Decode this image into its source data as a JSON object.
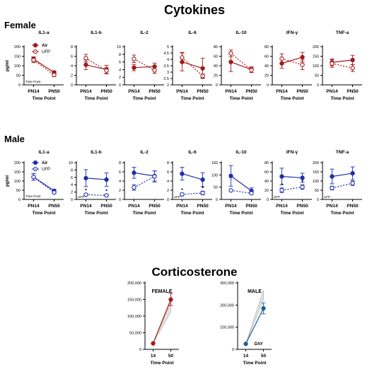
{
  "titles": {
    "cytokines": "Cytokines",
    "corticosterone": "Corticosterone"
  },
  "sections": {
    "female": "Female",
    "male": "Male"
  },
  "colors": {
    "female": "#a31a1a",
    "male": "#1f2fa8",
    "band": "#c8c8c8"
  },
  "legend": {
    "air": "Air",
    "ufp": "UFP"
  },
  "chart_data": [
    {
      "type": "line",
      "group": "Female",
      "title": "IL1-a",
      "xlabel": "Time Point",
      "ylabel": "pg/ml",
      "categories": [
        "PN14",
        "PN50"
      ],
      "ylim": [
        0,
        200
      ],
      "yticks": [
        0,
        50,
        100,
        150,
        200
      ],
      "series": [
        {
          "name": "Air",
          "values": [
            135,
            65
          ],
          "err": [
            12,
            8
          ]
        },
        {
          "name": "UFP",
          "values": [
            130,
            52
          ],
          "err": [
            14,
            9
          ]
        }
      ],
      "annotations": [
        "Time Point"
      ]
    },
    {
      "type": "line",
      "group": "Female",
      "title": "IL1-b",
      "xlabel": "Time Point",
      "categories": [
        "PN14",
        "PN50"
      ],
      "ylim": [
        0,
        8
      ],
      "yticks": [
        0,
        2,
        4,
        6,
        8
      ],
      "series": [
        {
          "name": "Air",
          "values": [
            4.2,
            3.2
          ],
          "err": [
            1.0,
            0.9
          ]
        },
        {
          "name": "UFP",
          "values": [
            5.6,
            3.0
          ],
          "err": [
            0.8,
            0.6
          ]
        }
      ]
    },
    {
      "type": "line",
      "group": "Female",
      "title": "IL-2",
      "xlabel": "Time Point",
      "categories": [
        "PN14",
        "PN50"
      ],
      "ylim": [
        0,
        10
      ],
      "yticks": [
        0,
        2,
        4,
        6,
        8,
        10
      ],
      "series": [
        {
          "name": "Air",
          "values": [
            4.5,
            4.8
          ],
          "err": [
            0.8,
            0.9
          ]
        },
        {
          "name": "UFP",
          "values": [
            6.8,
            3.8
          ],
          "err": [
            1.0,
            0.8
          ]
        }
      ]
    },
    {
      "type": "line",
      "group": "Female",
      "title": "IL-6",
      "xlabel": "Time Point",
      "categories": [
        "PN14",
        "PN50"
      ],
      "ylim": [
        2.0,
        5.0
      ],
      "yticks": [
        2.0,
        2.5,
        3.0,
        3.5,
        4.0,
        4.5,
        5.0
      ],
      "series": [
        {
          "name": "Air",
          "values": [
            3.8,
            3.3
          ],
          "err": [
            0.7,
            0.8
          ]
        },
        {
          "name": "UFP",
          "values": [
            4.15,
            2.7
          ],
          "err": [
            0.4,
            0.15
          ]
        }
      ]
    },
    {
      "type": "line",
      "group": "Female",
      "title": "IL-10",
      "xlabel": "Time Point",
      "categories": [
        "PN14",
        "PN50"
      ],
      "ylim": [
        0,
        80
      ],
      "yticks": [
        0,
        20,
        40,
        60,
        80
      ],
      "series": [
        {
          "name": "Air",
          "values": [
            48,
            32
          ],
          "err": [
            20,
            6
          ]
        },
        {
          "name": "UFP",
          "values": [
            66,
            31
          ],
          "err": [
            7,
            5
          ]
        }
      ]
    },
    {
      "type": "line",
      "group": "Female",
      "title": "IFN-γ",
      "xlabel": "Time Point",
      "categories": [
        "PN14",
        "PN50"
      ],
      "ylim": [
        0,
        80
      ],
      "yticks": [
        0,
        20,
        40,
        60,
        80
      ],
      "series": [
        {
          "name": "Air",
          "values": [
            45,
            58
          ],
          "err": [
            10,
            10
          ]
        },
        {
          "name": "UFP",
          "values": [
            55,
            42
          ],
          "err": [
            10,
            10
          ]
        }
      ]
    },
    {
      "type": "line",
      "group": "Female",
      "title": "TNF-a",
      "xlabel": "Time Point",
      "categories": [
        "PN14",
        "PN50"
      ],
      "ylim": [
        0,
        200
      ],
      "yticks": [
        0,
        50,
        100,
        150,
        200
      ],
      "series": [
        {
          "name": "Air",
          "values": [
            118,
            130
          ],
          "err": [
            18,
            25
          ]
        },
        {
          "name": "UFP",
          "values": [
            112,
            88
          ],
          "err": [
            20,
            18
          ]
        }
      ]
    },
    {
      "type": "line",
      "group": "Male",
      "title": "IL1-a",
      "xlabel": "Time Point",
      "ylabel": "pg/ml",
      "categories": [
        "PN14",
        "PN50"
      ],
      "ylim": [
        0,
        200
      ],
      "yticks": [
        0,
        50,
        100,
        150,
        200
      ],
      "series": [
        {
          "name": "Air",
          "values": [
            122,
            47
          ],
          "err": [
            18,
            6
          ]
        },
        {
          "name": "UFP",
          "values": [
            122,
            38
          ],
          "err": [
            18,
            6
          ]
        }
      ],
      "annotations": [
        "Time Point"
      ]
    },
    {
      "type": "line",
      "group": "Male",
      "title": "IL1-b",
      "xlabel": "Time Point",
      "categories": [
        "PN14",
        "PN50"
      ],
      "ylim": [
        0,
        10
      ],
      "yticks": [
        0,
        2,
        4,
        6,
        8,
        10
      ],
      "series": [
        {
          "name": "Air",
          "values": [
            5.8,
            5.4
          ],
          "err": [
            2.3,
            1.8
          ]
        },
        {
          "name": "UFP",
          "values": [
            1.3,
            1.1
          ],
          "err": [
            0.3,
            0.3
          ]
        }
      ],
      "annotations": [
        "UFP",
        "*",
        "*"
      ]
    },
    {
      "type": "line",
      "group": "Male",
      "title": "IL-2",
      "xlabel": "Time Point",
      "categories": [
        "PN14",
        "PN50"
      ],
      "ylim": [
        0,
        8
      ],
      "yticks": [
        0,
        2,
        4,
        6,
        8
      ],
      "series": [
        {
          "name": "Air",
          "values": [
            5.8,
            5.1
          ],
          "err": [
            1.2,
            1.1
          ]
        },
        {
          "name": "UFP",
          "values": [
            2.6,
            5.0
          ],
          "err": [
            0.6,
            1.2
          ]
        }
      ]
    },
    {
      "type": "line",
      "group": "Male",
      "title": "IL-6",
      "xlabel": "Time Point",
      "categories": [
        "PN14",
        "PN50"
      ],
      "ylim": [
        0,
        8
      ],
      "yticks": [
        0,
        2,
        4,
        6,
        8
      ],
      "series": [
        {
          "name": "Air",
          "values": [
            5.6,
            4.3
          ],
          "err": [
            1.4,
            1.5
          ]
        },
        {
          "name": "UFP",
          "values": [
            1.1,
            1.4
          ],
          "err": [
            0.3,
            0.4
          ]
        }
      ],
      "annotations": [
        "UFP",
        "*",
        "*"
      ]
    },
    {
      "type": "line",
      "group": "Male",
      "title": "IL-10",
      "xlabel": "Time Point",
      "categories": [
        "PN14",
        "PN50"
      ],
      "ylim": [
        0,
        150
      ],
      "yticks": [
        0,
        50,
        100,
        150
      ],
      "series": [
        {
          "name": "Air",
          "values": [
            96,
            35
          ],
          "err": [
            42,
            12
          ]
        },
        {
          "name": "UFP",
          "values": [
            37,
            25
          ],
          "err": [
            2,
            3
          ]
        }
      ]
    },
    {
      "type": "line",
      "group": "Male",
      "title": "IFN-γ",
      "xlabel": "Time Point",
      "categories": [
        "PN14",
        "PN50"
      ],
      "ylim": [
        0,
        80
      ],
      "yticks": [
        0,
        20,
        40,
        60,
        80
      ],
      "series": [
        {
          "name": "Air",
          "values": [
            50,
            47
          ],
          "err": [
            18,
            10
          ]
        },
        {
          "name": "UFP",
          "values": [
            20,
            27
          ],
          "err": [
            5,
            5
          ]
        }
      ],
      "annotations": [
        "UFP",
        "*",
        "*"
      ]
    },
    {
      "type": "line",
      "group": "Male",
      "title": "TNF-a",
      "xlabel": "Time Point",
      "categories": [
        "PN14",
        "PN50"
      ],
      "ylim": [
        0,
        200
      ],
      "yticks": [
        0,
        50,
        100,
        150,
        200
      ],
      "series": [
        {
          "name": "Air",
          "values": [
            125,
            142
          ],
          "err": [
            40,
            35
          ]
        },
        {
          "name": "UFP",
          "values": [
            62,
            88
          ],
          "err": [
            10,
            12
          ]
        }
      ],
      "annotations": [
        "UFP"
      ]
    },
    {
      "type": "line",
      "group": "Corticosterone",
      "title": "FEMALE",
      "xlabel": "Time Point",
      "categories": [
        "14",
        "50"
      ],
      "ylim": [
        0,
        200000
      ],
      "yticks": [
        0,
        50000,
        100000,
        150000,
        200000
      ],
      "ytick_labels": [
        "0",
        "50,000",
        "100,000",
        "150,000",
        "200,000"
      ],
      "series": [
        {
          "values": [
            18000,
            150000
          ],
          "err": [
            1500,
            18000
          ]
        }
      ],
      "band": {
        "lower": [
          18000,
          112000
        ],
        "upper": [
          18000,
          142000
        ]
      }
    },
    {
      "type": "line",
      "group": "Corticosterone",
      "title": "MALE",
      "xlabel": "Time Point",
      "categories": [
        "14",
        "50"
      ],
      "ylim": [
        0,
        300000
      ],
      "yticks": [
        0,
        100000,
        200000,
        300000
      ],
      "ytick_labels": [
        "0",
        "100,000",
        "200,000",
        "300,000"
      ],
      "series": [
        {
          "values": [
            25000,
            185000
          ],
          "err": [
            2000,
            25000
          ]
        }
      ],
      "band": {
        "lower": [
          25000,
          225000
        ],
        "upper": [
          25000,
          268000
        ]
      },
      "annotations": [
        "DAY"
      ]
    }
  ]
}
